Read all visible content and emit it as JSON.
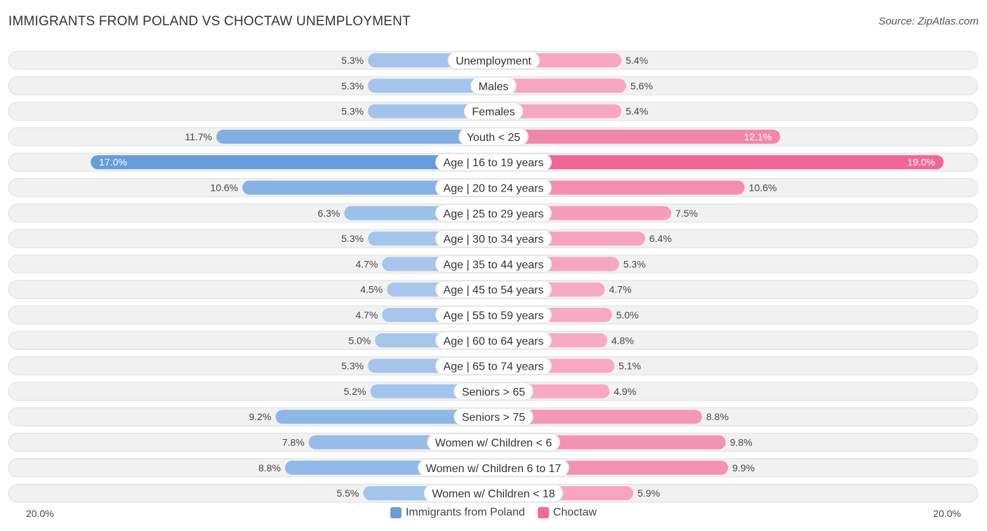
{
  "header": {
    "title": "IMMIGRANTS FROM POLAND VS CHOCTAW UNEMPLOYMENT",
    "source": "Source: ZipAtlas.com"
  },
  "axis": {
    "left_label": "20.0%",
    "right_label": "20.0%"
  },
  "legend": {
    "left": {
      "label": "Immigrants from Poland",
      "color": "#6a9fdb"
    },
    "right": {
      "label": "Choctaw",
      "color": "#f06b98"
    }
  },
  "chart_data": {
    "type": "bar",
    "orientation": "diverging-horizontal",
    "title": "IMMIGRANTS FROM POLAND VS CHOCTAW UNEMPLOYMENT",
    "xlim": [
      -20,
      20
    ],
    "categories": [
      "Unemployment",
      "Males",
      "Females",
      "Youth < 25",
      "Age | 16 to 19 years",
      "Age | 20 to 24 years",
      "Age | 25 to 29 years",
      "Age | 30 to 34 years",
      "Age | 35 to 44 years",
      "Age | 45 to 54 years",
      "Age | 55 to 59 years",
      "Age | 60 to 64 years",
      "Age | 65 to 74 years",
      "Seniors > 65",
      "Seniors > 75",
      "Women w/ Children < 6",
      "Women w/ Children 6 to 17",
      "Women w/ Children < 18"
    ],
    "series": [
      {
        "name": "Immigrants from Poland",
        "values": [
          5.3,
          5.3,
          5.3,
          11.7,
          17.0,
          10.6,
          6.3,
          5.3,
          4.7,
          4.5,
          4.7,
          5.0,
          5.3,
          5.2,
          9.2,
          7.8,
          8.8,
          5.5
        ],
        "labels": [
          "5.3%",
          "5.3%",
          "5.3%",
          "11.7%",
          "17.0%",
          "10.6%",
          "6.3%",
          "5.3%",
          "4.7%",
          "4.5%",
          "4.7%",
          "5.0%",
          "5.3%",
          "5.2%",
          "9.2%",
          "7.8%",
          "8.8%",
          "5.5%"
        ]
      },
      {
        "name": "Choctaw",
        "values": [
          5.4,
          5.6,
          5.4,
          12.1,
          19.0,
          10.6,
          7.5,
          6.4,
          5.3,
          4.7,
          5.0,
          4.8,
          5.1,
          4.9,
          8.8,
          9.8,
          9.9,
          5.9
        ],
        "labels": [
          "5.4%",
          "5.6%",
          "5.4%",
          "12.1%",
          "19.0%",
          "10.6%",
          "7.5%",
          "6.4%",
          "5.3%",
          "4.7%",
          "5.0%",
          "4.8%",
          "5.1%",
          "4.9%",
          "8.8%",
          "9.8%",
          "9.9%",
          "5.9%"
        ]
      }
    ]
  }
}
